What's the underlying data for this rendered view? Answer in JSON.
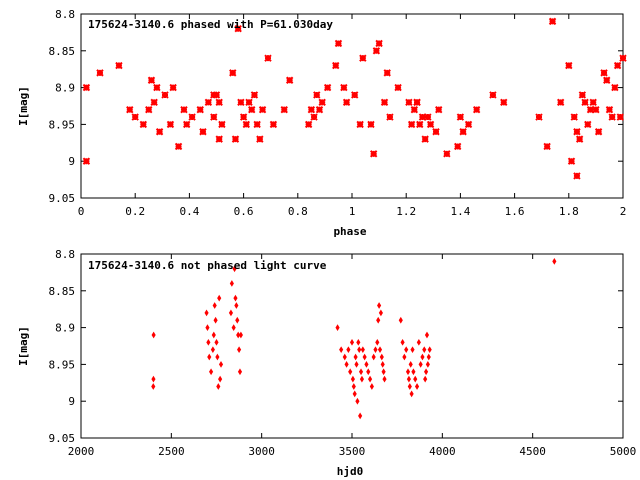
{
  "chart_data": [
    {
      "type": "scatter",
      "title": "175624-3140.6 phased with P=61.030day",
      "xlabel": "phase",
      "ylabel": "I[mag]",
      "xlim": [
        0,
        2
      ],
      "ylim": [
        9.05,
        8.8
      ],
      "y_inverted": true,
      "xticks": [
        "0",
        "0.2",
        "0.4",
        "0.6",
        "0.8",
        "1",
        "1.2",
        "1.4",
        "1.6",
        "1.8",
        "2"
      ],
      "yticks": [
        "8.8",
        "8.85",
        "8.9",
        "8.95",
        "9",
        "9.05"
      ],
      "marker_color": "#ff0000",
      "series": [
        {
          "x": [
            0.02,
            0.07,
            0.14,
            0.18,
            0.2,
            0.23,
            0.25,
            0.26,
            0.27,
            0.28,
            0.29,
            0.31,
            0.33,
            0.34,
            0.36,
            0.38,
            0.39,
            0.41,
            0.44,
            0.45,
            0.47,
            0.49,
            0.5,
            0.51,
            0.56,
            0.57,
            0.58,
            0.59,
            0.6,
            0.61,
            0.62,
            0.63,
            0.64,
            0.65,
            0.66,
            0.67,
            0.69,
            0.71,
            0.75,
            0.77,
            0.84,
            0.85,
            0.86,
            0.87,
            0.88,
            0.89,
            0.91,
            0.94,
            0.95,
            0.97,
            0.98,
            1.01,
            1.04,
            1.07,
            1.08,
            1.09,
            1.1,
            1.12,
            1.13,
            1.14,
            1.17,
            1.21,
            1.22,
            1.23,
            1.24,
            1.25,
            1.27,
            1.28,
            1.29,
            1.31,
            1.32,
            1.35,
            1.39,
            1.4,
            1.41,
            1.43,
            1.46,
            1.52,
            1.56,
            1.69,
            1.72,
            1.74,
            1.77,
            1.8,
            1.81,
            1.82,
            1.83,
            1.84,
            1.85,
            1.86,
            1.87,
            1.88,
            1.89,
            1.9,
            1.93,
            1.94,
            1.95,
            1.96,
            1.97,
            1.98,
            1.99,
            2.0,
            0.02,
            0.49,
            0.51,
            0.52,
            1.03,
            1.24,
            1.26,
            1.83,
            1.91
          ],
          "y": [
            8.9,
            8.88,
            8.87,
            8.93,
            8.94,
            8.95,
            8.93,
            8.89,
            8.92,
            8.9,
            8.96,
            8.91,
            8.95,
            8.9,
            8.98,
            8.93,
            8.95,
            8.94,
            8.93,
            8.96,
            8.92,
            8.94,
            8.91,
            8.97,
            8.88,
            8.97,
            8.82,
            8.92,
            8.94,
            8.95,
            8.92,
            8.93,
            8.91,
            8.95,
            8.97,
            8.93,
            8.86,
            8.95,
            8.93,
            8.89,
            8.95,
            8.93,
            8.94,
            8.91,
            8.93,
            8.92,
            8.9,
            8.87,
            8.84,
            8.9,
            8.92,
            8.91,
            8.86,
            8.95,
            8.99,
            8.85,
            8.84,
            8.92,
            8.88,
            8.94,
            8.9,
            8.92,
            8.95,
            8.93,
            8.92,
            8.95,
            8.97,
            8.94,
            8.95,
            8.96,
            8.93,
            8.99,
            8.98,
            8.94,
            8.96,
            8.95,
            8.93,
            8.91,
            8.92,
            8.94,
            8.98,
            8.81,
            8.92,
            8.87,
            9.0,
            8.94,
            9.02,
            8.97,
            8.91,
            8.92,
            8.95,
            8.93,
            8.92,
            8.93,
            8.88,
            8.89,
            8.93,
            8.94,
            8.9,
            8.87,
            8.94,
            8.86,
            9.0,
            8.91,
            8.92,
            8.95,
            8.95,
            8.92,
            8.94,
            8.96,
            8.96
          ],
          "marker": "star"
        }
      ]
    },
    {
      "type": "scatter",
      "title": "175624-3140.6 not phased light curve",
      "xlabel": "hjd0",
      "ylabel": "I[mag]",
      "xlim": [
        2000,
        5000
      ],
      "ylim": [
        9.05,
        8.8
      ],
      "y_inverted": true,
      "xticks": [
        "2000",
        "2500",
        "3000",
        "3500",
        "4000",
        "4500",
        "5000"
      ],
      "yticks": [
        "8.8",
        "8.85",
        "8.9",
        "8.95",
        "9",
        "9.05"
      ],
      "marker_color": "#ff0000",
      "series": [
        {
          "x": [
            2400,
            2401,
            2402,
            2695,
            2700,
            2705,
            2710,
            2720,
            2730,
            2735,
            2740,
            2745,
            2750,
            2755,
            2760,
            2765,
            2770,
            2775,
            2830,
            2835,
            2845,
            2850,
            2855,
            2860,
            2865,
            2870,
            2875,
            2880,
            2885,
            3420,
            3440,
            3460,
            3470,
            3480,
            3490,
            3500,
            3505,
            3510,
            3515,
            3520,
            3525,
            3530,
            3535,
            3540,
            3545,
            3550,
            3555,
            3560,
            3570,
            3580,
            3590,
            3600,
            3610,
            3620,
            3630,
            3640,
            3645,
            3650,
            3655,
            3660,
            3665,
            3670,
            3675,
            3680,
            3770,
            3780,
            3790,
            3800,
            3810,
            3815,
            3820,
            3825,
            3830,
            3835,
            3840,
            3850,
            3860,
            3870,
            3880,
            3890,
            3900,
            3905,
            3910,
            3915,
            3920,
            3925,
            3930,
            4620
          ],
          "y": [
            8.98,
            8.97,
            8.91,
            8.88,
            8.9,
            8.92,
            8.94,
            8.96,
            8.93,
            8.91,
            8.87,
            8.89,
            8.92,
            8.94,
            8.98,
            8.86,
            8.97,
            8.95,
            8.88,
            8.84,
            8.9,
            8.82,
            8.86,
            8.87,
            8.89,
            8.91,
            8.93,
            8.96,
            8.91,
            8.9,
            8.93,
            8.94,
            8.95,
            8.93,
            8.96,
            8.92,
            8.97,
            8.98,
            8.99,
            8.94,
            8.95,
            9.0,
            8.92,
            8.93,
            9.02,
            8.96,
            8.97,
            8.93,
            8.94,
            8.95,
            8.96,
            8.97,
            8.98,
            8.94,
            8.93,
            8.92,
            8.89,
            8.87,
            8.93,
            8.88,
            8.94,
            8.95,
            8.96,
            8.97,
            8.89,
            8.92,
            8.94,
            8.93,
            8.96,
            8.97,
            8.98,
            8.95,
            8.99,
            8.93,
            8.96,
            8.97,
            8.98,
            8.92,
            8.95,
            8.94,
            8.93,
            8.97,
            8.96,
            8.91,
            8.95,
            8.94,
            8.93,
            8.81
          ],
          "marker": "diamond"
        }
      ]
    }
  ]
}
